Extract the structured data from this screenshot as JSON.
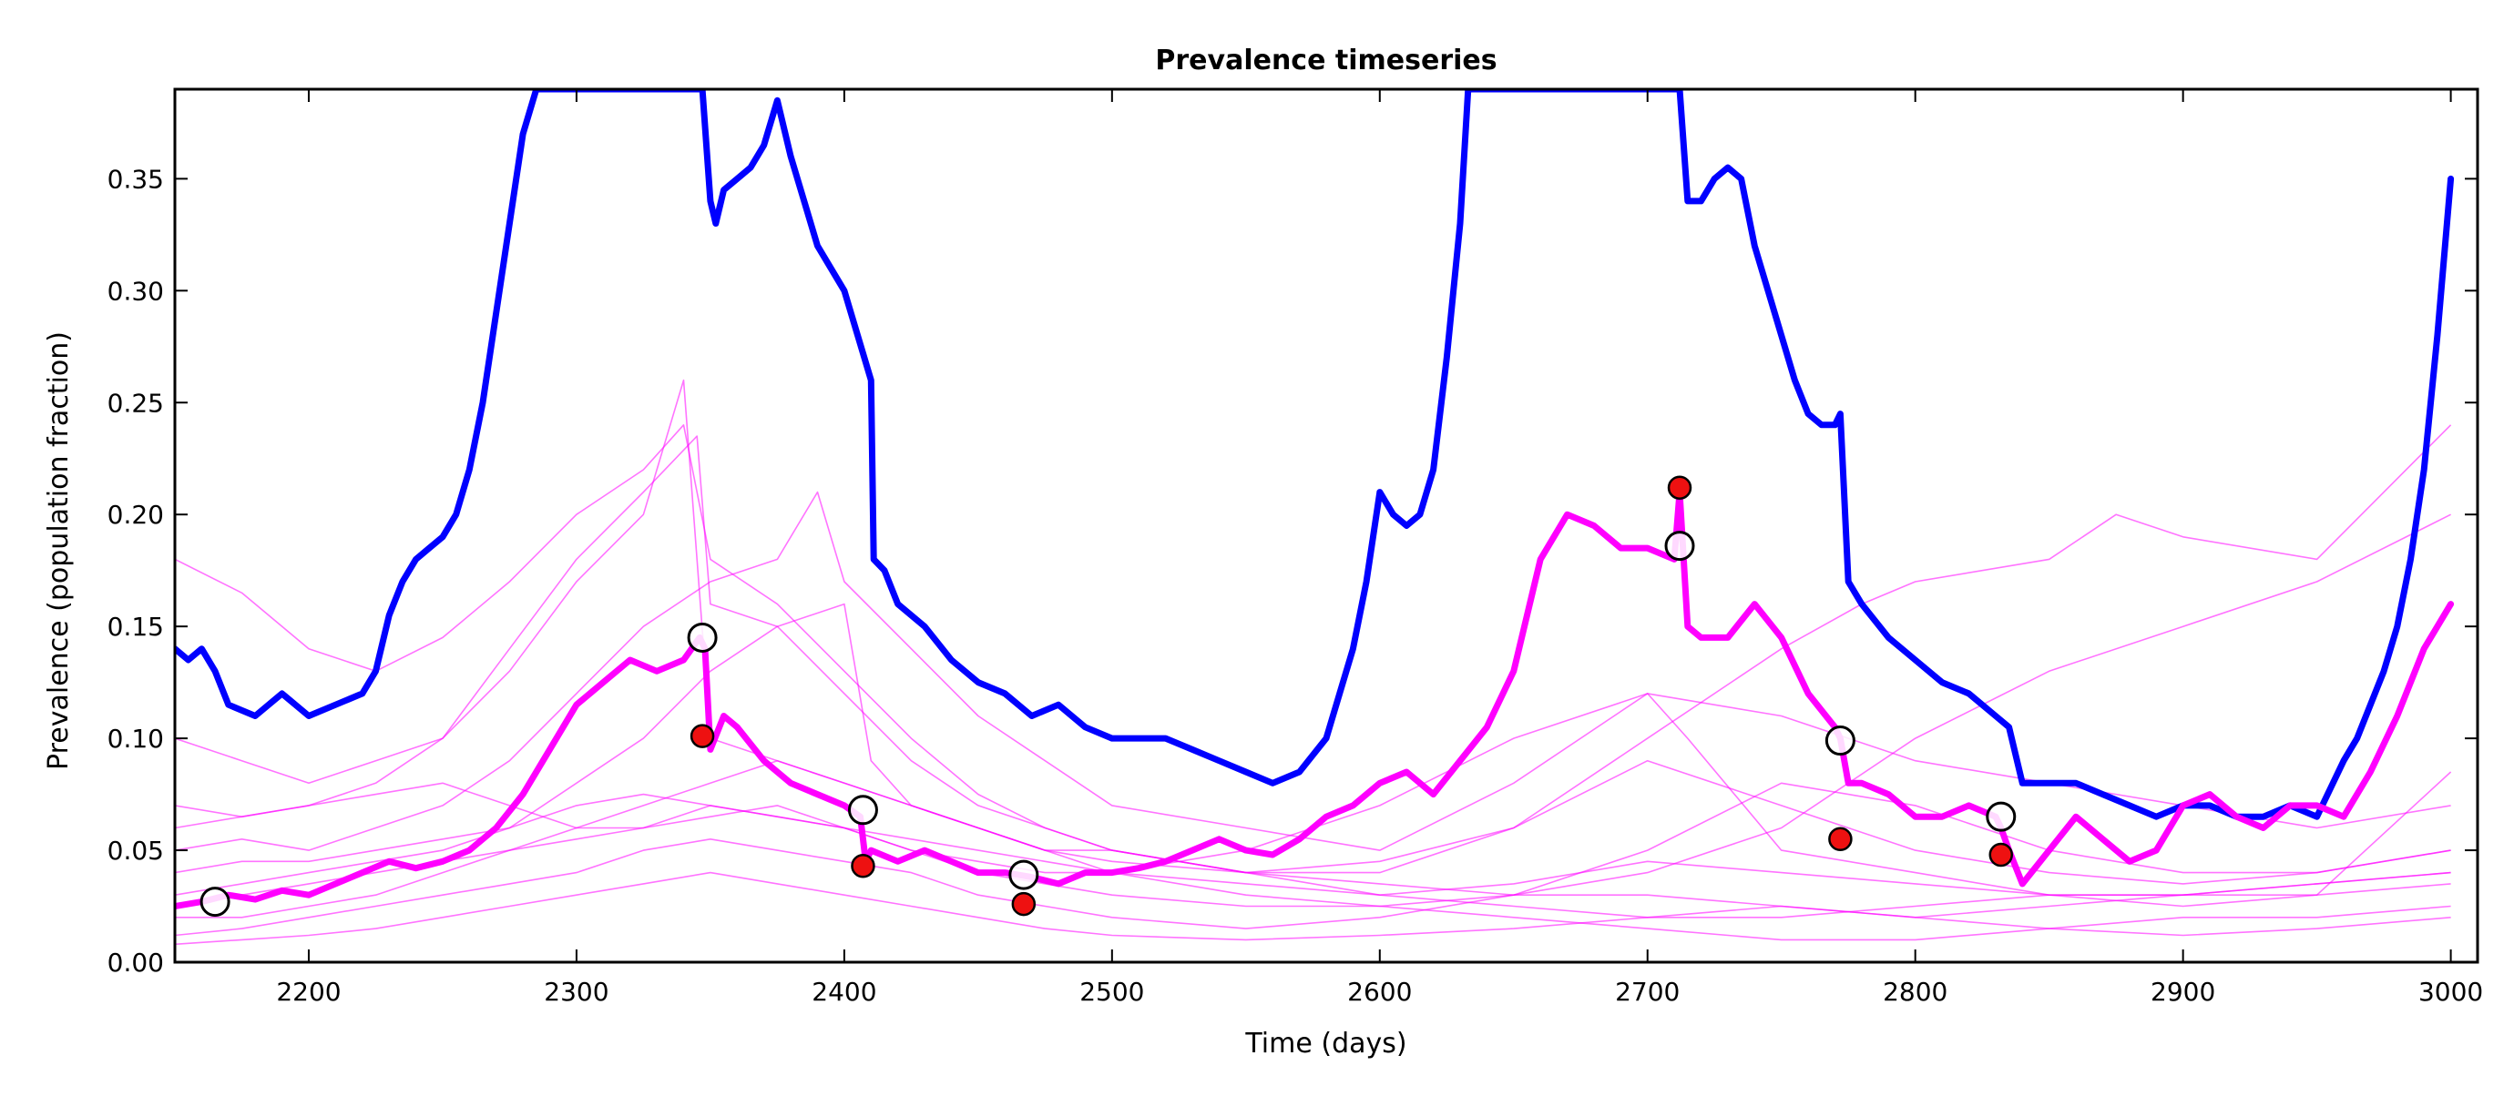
{
  "chart_data": {
    "type": "line",
    "title": "Prevalence timeseries",
    "xlabel": "Time (days)",
    "ylabel": "Prevalence (population fraction)",
    "xlim": [
      2150,
      3010
    ],
    "ylim": [
      0.0,
      0.39
    ],
    "xticks": [
      2200,
      2300,
      2400,
      2500,
      2600,
      2700,
      2800,
      2900,
      3000
    ],
    "yticks": [
      0.0,
      0.05,
      0.1,
      0.15,
      0.2,
      0.25,
      0.3,
      0.35
    ],
    "ytick_labels": [
      "0.00",
      "0.05",
      "0.10",
      "0.15",
      "0.20",
      "0.25",
      "0.30",
      "0.35"
    ],
    "grid": false,
    "legend": false,
    "colors": {
      "blue_series": "#0000ff",
      "magenta_series": "#ff00ff",
      "thin_series": "#ff00ff",
      "red_marker": "#ee1111",
      "open_marker": "#000000"
    },
    "series": [
      {
        "role": "thick-blue",
        "x": [
          2150,
          2155,
          2160,
          2165,
          2170,
          2180,
          2190,
          2200,
          2210,
          2220,
          2225,
          2230,
          2235,
          2240,
          2245,
          2250,
          2255,
          2260,
          2265,
          2270,
          2275,
          2280,
          2285,
          2290,
          2300,
          2310,
          2320,
          2330,
          2340,
          2346,
          2347,
          2350,
          2352,
          2355,
          2360,
          2365,
          2370,
          2375,
          2380,
          2385,
          2390,
          2395,
          2400,
          2405,
          2410,
          2411,
          2415,
          2420,
          2430,
          2440,
          2450,
          2460,
          2470,
          2480,
          2490,
          2500,
          2510,
          2520,
          2530,
          2540,
          2550,
          2560,
          2570,
          2580,
          2585,
          2590,
          2595,
          2600,
          2605,
          2610,
          2615,
          2620,
          2625,
          2630,
          2633,
          2710,
          2712,
          2715,
          2720,
          2725,
          2730,
          2735,
          2740,
          2745,
          2750,
          2755,
          2760,
          2765,
          2770,
          2772,
          2775,
          2780,
          2790,
          2800,
          2810,
          2820,
          2830,
          2835,
          2840,
          2850,
          2860,
          2870,
          2880,
          2890,
          2900,
          2910,
          2920,
          2930,
          2940,
          2950,
          2960,
          2965,
          2970,
          2975,
          2980,
          2985,
          2990,
          2995,
          3000
        ],
        "y": [
          0.14,
          0.135,
          0.14,
          0.13,
          0.115,
          0.11,
          0.12,
          0.11,
          0.115,
          0.12,
          0.13,
          0.155,
          0.17,
          0.18,
          0.185,
          0.19,
          0.2,
          0.22,
          0.25,
          0.29,
          0.33,
          0.37,
          0.39,
          0.39,
          0.39,
          0.39,
          0.39,
          0.39,
          0.39,
          0.39,
          0.39,
          0.34,
          0.33,
          0.345,
          0.35,
          0.355,
          0.365,
          0.385,
          0.36,
          0.34,
          0.32,
          0.31,
          0.3,
          0.28,
          0.26,
          0.18,
          0.175,
          0.16,
          0.15,
          0.135,
          0.125,
          0.12,
          0.11,
          0.115,
          0.105,
          0.1,
          0.1,
          0.1,
          0.095,
          0.09,
          0.085,
          0.08,
          0.085,
          0.1,
          0.12,
          0.14,
          0.17,
          0.21,
          0.2,
          0.195,
          0.2,
          0.22,
          0.27,
          0.33,
          0.39,
          0.39,
          0.39,
          0.34,
          0.34,
          0.35,
          0.355,
          0.35,
          0.32,
          0.3,
          0.28,
          0.26,
          0.245,
          0.24,
          0.24,
          0.245,
          0.17,
          0.16,
          0.145,
          0.135,
          0.125,
          0.12,
          0.11,
          0.105,
          0.08,
          0.08,
          0.08,
          0.075,
          0.07,
          0.065,
          0.07,
          0.07,
          0.065,
          0.065,
          0.07,
          0.065,
          0.09,
          0.1,
          0.115,
          0.13,
          0.15,
          0.18,
          0.22,
          0.28,
          0.35
        ]
      },
      {
        "role": "thick-magenta",
        "x": [
          2150,
          2160,
          2170,
          2180,
          2190,
          2200,
          2210,
          2220,
          2230,
          2240,
          2250,
          2260,
          2270,
          2280,
          2290,
          2300,
          2310,
          2320,
          2330,
          2340,
          2346,
          2348,
          2350,
          2355,
          2360,
          2370,
          2380,
          2390,
          2400,
          2406,
          2408,
          2410,
          2420,
          2430,
          2440,
          2450,
          2460,
          2470,
          2480,
          2490,
          2500,
          2510,
          2520,
          2530,
          2540,
          2550,
          2560,
          2570,
          2580,
          2590,
          2600,
          2610,
          2620,
          2630,
          2640,
          2650,
          2660,
          2670,
          2680,
          2690,
          2700,
          2710,
          2712,
          2715,
          2720,
          2730,
          2740,
          2750,
          2760,
          2770,
          2772,
          2775,
          2780,
          2790,
          2800,
          2810,
          2820,
          2830,
          2832,
          2835,
          2840,
          2850,
          2860,
          2870,
          2880,
          2890,
          2900,
          2910,
          2920,
          2930,
          2940,
          2950,
          2960,
          2970,
          2980,
          2990,
          3000
        ],
        "y": [
          0.025,
          0.027,
          0.03,
          0.028,
          0.032,
          0.03,
          0.035,
          0.04,
          0.045,
          0.042,
          0.045,
          0.05,
          0.06,
          0.075,
          0.095,
          0.115,
          0.125,
          0.135,
          0.13,
          0.135,
          0.145,
          0.14,
          0.095,
          0.11,
          0.105,
          0.09,
          0.08,
          0.075,
          0.07,
          0.065,
          0.045,
          0.05,
          0.045,
          0.05,
          0.045,
          0.04,
          0.04,
          0.038,
          0.035,
          0.04,
          0.04,
          0.042,
          0.045,
          0.05,
          0.055,
          0.05,
          0.048,
          0.055,
          0.065,
          0.07,
          0.08,
          0.085,
          0.075,
          0.09,
          0.105,
          0.13,
          0.18,
          0.2,
          0.195,
          0.185,
          0.185,
          0.18,
          0.21,
          0.15,
          0.145,
          0.145,
          0.16,
          0.145,
          0.12,
          0.105,
          0.1,
          0.08,
          0.08,
          0.075,
          0.065,
          0.065,
          0.07,
          0.065,
          0.06,
          0.05,
          0.035,
          0.05,
          0.065,
          0.055,
          0.045,
          0.05,
          0.07,
          0.075,
          0.065,
          0.06,
          0.07,
          0.07,
          0.065,
          0.085,
          0.11,
          0.14,
          0.16
        ]
      }
    ],
    "thin_series": [
      {
        "x": [
          2150,
          2175,
          2200,
          2225,
          2250,
          2275,
          2300,
          2325,
          2340,
          2350,
          2375,
          2400,
          2425,
          2450,
          2475,
          2500,
          2550,
          2600,
          2650,
          2700,
          2750,
          2800,
          2850,
          2900,
          2950,
          3000
        ],
        "y": [
          0.18,
          0.165,
          0.14,
          0.13,
          0.145,
          0.17,
          0.2,
          0.22,
          0.24,
          0.18,
          0.16,
          0.13,
          0.1,
          0.075,
          0.06,
          0.05,
          0.04,
          0.03,
          0.025,
          0.02,
          0.02,
          0.025,
          0.03,
          0.03,
          0.035,
          0.04
        ]
      },
      {
        "x": [
          2150,
          2175,
          2200,
          2225,
          2250,
          2275,
          2300,
          2325,
          2340,
          2350,
          2375,
          2400,
          2425,
          2450,
          2475,
          2500,
          2550,
          2600,
          2650,
          2700,
          2750,
          2800,
          2850,
          2900,
          2950,
          3000
        ],
        "y": [
          0.1,
          0.09,
          0.08,
          0.09,
          0.1,
          0.13,
          0.17,
          0.2,
          0.26,
          0.1,
          0.09,
          0.08,
          0.07,
          0.06,
          0.05,
          0.04,
          0.03,
          0.025,
          0.02,
          0.015,
          0.01,
          0.01,
          0.015,
          0.02,
          0.02,
          0.025
        ]
      },
      {
        "x": [
          2150,
          2175,
          2200,
          2225,
          2250,
          2275,
          2300,
          2325,
          2345,
          2350,
          2375,
          2400,
          2425,
          2450,
          2475,
          2500,
          2550,
          2600,
          2650,
          2700,
          2750,
          2800,
          2850,
          2900,
          2950,
          3000
        ],
        "y": [
          0.07,
          0.065,
          0.07,
          0.08,
          0.1,
          0.14,
          0.18,
          0.21,
          0.235,
          0.16,
          0.15,
          0.12,
          0.09,
          0.07,
          0.06,
          0.05,
          0.04,
          0.035,
          0.03,
          0.03,
          0.025,
          0.02,
          0.025,
          0.03,
          0.03,
          0.035
        ]
      },
      {
        "x": [
          2150,
          2175,
          2200,
          2225,
          2250,
          2275,
          2300,
          2325,
          2350,
          2375,
          2390,
          2400,
          2425,
          2450,
          2475,
          2500,
          2550,
          2600,
          2650,
          2700,
          2715,
          2750,
          2800,
          2850,
          2900,
          2950,
          3000
        ],
        "y": [
          0.05,
          0.055,
          0.05,
          0.06,
          0.07,
          0.09,
          0.12,
          0.15,
          0.17,
          0.18,
          0.21,
          0.17,
          0.14,
          0.11,
          0.09,
          0.07,
          0.06,
          0.05,
          0.08,
          0.12,
          0.1,
          0.05,
          0.04,
          0.03,
          0.03,
          0.035,
          0.04
        ]
      },
      {
        "x": [
          2150,
          2175,
          2200,
          2225,
          2250,
          2275,
          2300,
          2325,
          2350,
          2375,
          2400,
          2410,
          2425,
          2450,
          2475,
          2500,
          2550,
          2600,
          2650,
          2700,
          2750,
          2800,
          2850,
          2900,
          2950,
          3000
        ],
        "y": [
          0.03,
          0.035,
          0.04,
          0.045,
          0.05,
          0.06,
          0.08,
          0.1,
          0.13,
          0.15,
          0.16,
          0.09,
          0.07,
          0.06,
          0.05,
          0.045,
          0.04,
          0.045,
          0.06,
          0.09,
          0.07,
          0.05,
          0.04,
          0.035,
          0.04,
          0.05
        ]
      },
      {
        "x": [
          2150,
          2175,
          2200,
          2225,
          2250,
          2275,
          2300,
          2325,
          2350,
          2375,
          2400,
          2425,
          2450,
          2475,
          2500,
          2550,
          2600,
          2650,
          2700,
          2750,
          2780,
          2800,
          2850,
          2875,
          2900,
          2950,
          3000
        ],
        "y": [
          0.02,
          0.02,
          0.025,
          0.03,
          0.04,
          0.05,
          0.06,
          0.07,
          0.08,
          0.09,
          0.08,
          0.07,
          0.06,
          0.05,
          0.05,
          0.04,
          0.04,
          0.06,
          0.1,
          0.14,
          0.16,
          0.17,
          0.18,
          0.2,
          0.19,
          0.18,
          0.24
        ]
      },
      {
        "x": [
          2150,
          2175,
          2200,
          2225,
          2250,
          2275,
          2300,
          2325,
          2350,
          2375,
          2400,
          2425,
          2450,
          2475,
          2500,
          2550,
          2600,
          2650,
          2700,
          2750,
          2800,
          2850,
          2900,
          2950,
          3000
        ],
        "y": [
          0.06,
          0.065,
          0.07,
          0.075,
          0.08,
          0.07,
          0.06,
          0.06,
          0.065,
          0.07,
          0.06,
          0.05,
          0.04,
          0.035,
          0.03,
          0.025,
          0.025,
          0.03,
          0.04,
          0.06,
          0.1,
          0.13,
          0.15,
          0.17,
          0.2
        ]
      },
      {
        "x": [
          2150,
          2175,
          2200,
          2225,
          2250,
          2275,
          2300,
          2325,
          2350,
          2375,
          2400,
          2425,
          2450,
          2475,
          2500,
          2550,
          2600,
          2650,
          2700,
          2750,
          2800,
          2850,
          2900,
          2950,
          3000
        ],
        "y": [
          0.04,
          0.045,
          0.045,
          0.05,
          0.055,
          0.06,
          0.07,
          0.075,
          0.07,
          0.065,
          0.06,
          0.05,
          0.045,
          0.04,
          0.04,
          0.05,
          0.07,
          0.1,
          0.12,
          0.11,
          0.09,
          0.08,
          0.07,
          0.06,
          0.07
        ]
      },
      {
        "x": [
          2150,
          2175,
          2200,
          2225,
          2250,
          2275,
          2300,
          2325,
          2350,
          2375,
          2400,
          2425,
          2450,
          2475,
          2500,
          2550,
          2600,
          2650,
          2700,
          2750,
          2800,
          2850,
          2900,
          2950,
          3000
        ],
        "y": [
          0.012,
          0.015,
          0.02,
          0.025,
          0.03,
          0.035,
          0.04,
          0.05,
          0.055,
          0.05,
          0.045,
          0.04,
          0.03,
          0.025,
          0.02,
          0.015,
          0.02,
          0.03,
          0.05,
          0.08,
          0.07,
          0.05,
          0.04,
          0.04,
          0.05
        ]
      },
      {
        "x": [
          2150,
          2175,
          2200,
          2225,
          2250,
          2275,
          2300,
          2325,
          2350,
          2375,
          2400,
          2425,
          2450,
          2475,
          2500,
          2550,
          2600,
          2650,
          2700,
          2750,
          2800,
          2850,
          2900,
          2950,
          3000
        ],
        "y": [
          0.025,
          0.03,
          0.035,
          0.04,
          0.045,
          0.05,
          0.055,
          0.06,
          0.07,
          0.065,
          0.06,
          0.055,
          0.05,
          0.045,
          0.04,
          0.035,
          0.03,
          0.035,
          0.045,
          0.04,
          0.035,
          0.03,
          0.025,
          0.03,
          0.085
        ]
      },
      {
        "x": [
          2150,
          2175,
          2200,
          2225,
          2250,
          2275,
          2300,
          2325,
          2350,
          2375,
          2400,
          2425,
          2450,
          2475,
          2500,
          2550,
          2600,
          2650,
          2700,
          2750,
          2800,
          2850,
          2900,
          2950,
          3000
        ],
        "y": [
          0.008,
          0.01,
          0.012,
          0.015,
          0.02,
          0.025,
          0.03,
          0.035,
          0.04,
          0.035,
          0.03,
          0.025,
          0.02,
          0.015,
          0.012,
          0.01,
          0.012,
          0.015,
          0.02,
          0.025,
          0.02,
          0.015,
          0.012,
          0.015,
          0.02
        ]
      }
    ],
    "open_markers": {
      "x": [
        2165,
        2347,
        2407,
        2467,
        2712,
        2772,
        2832
      ],
      "y": [
        0.027,
        0.145,
        0.068,
        0.039,
        0.186,
        0.099,
        0.065
      ]
    },
    "red_markers": {
      "x": [
        2347,
        2407,
        2467,
        2712,
        2772,
        2832
      ],
      "y": [
        0.101,
        0.043,
        0.026,
        0.212,
        0.055,
        0.048
      ]
    }
  }
}
